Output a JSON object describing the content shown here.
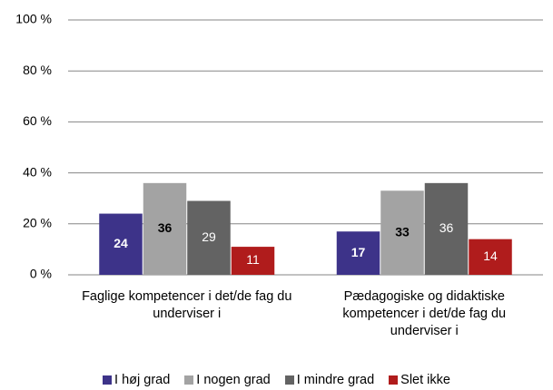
{
  "chart_data": {
    "type": "bar",
    "categories": [
      "Faglige kompetencer i det/de fag du underviser i",
      "Pædagogiske og didaktiske kompetencer i det/de fag du underviser i"
    ],
    "series": [
      {
        "name": "I høj grad",
        "color": "#3d3389",
        "values": [
          24,
          17
        ]
      },
      {
        "name": "I nogen grad",
        "color": "#a3a3a3",
        "values": [
          36,
          33
        ]
      },
      {
        "name": "I mindre grad",
        "color": "#636363",
        "values": [
          29,
          36
        ]
      },
      {
        "name": "Slet ikke",
        "color": "#b01c1c",
        "values": [
          11,
          14
        ]
      }
    ],
    "ylim": [
      0,
      100
    ],
    "yticks": [
      {
        "value": 0,
        "label": "0 %"
      },
      {
        "value": 20,
        "label": "20 %"
      },
      {
        "value": 40,
        "label": "40 %"
      },
      {
        "value": 60,
        "label": "60 %"
      },
      {
        "value": 80,
        "label": "80 %"
      },
      {
        "value": 100,
        "label": "100 %"
      }
    ],
    "grid": true,
    "legend": "bottom"
  }
}
